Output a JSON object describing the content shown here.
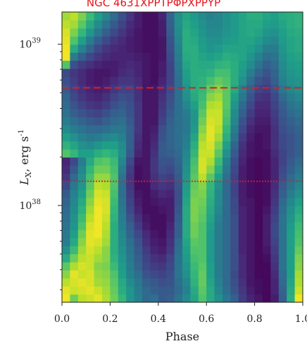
{
  "banner": {
    "text": "NGC 4631ΧΡΡΤΡΦΡΧΡΡΥΡ",
    "color": "#e8141b"
  },
  "chart_data": {
    "type": "heatmap",
    "title": "",
    "xlabel": "Phase",
    "ylabel": "L_X, erg s^-1",
    "xlim": [
      0.0,
      1.0
    ],
    "ylim_log10": [
      37.4,
      39.2
    ],
    "y_scale": "log",
    "colormap": "viridis",
    "x_ticks": [
      0.0,
      0.2,
      0.4,
      0.6,
      0.8,
      1.0
    ],
    "x_tick_labels": [
      "0.0",
      "0.2",
      "0.4",
      "0.6",
      "0.8",
      "1.0"
    ],
    "y_ticks_major": [
      38,
      39
    ],
    "y_tick_labels": [
      "10",
      "10"
    ],
    "y_tick_exponents": [
      "38",
      "39"
    ],
    "rows_log10_start": 37.4,
    "row_step_log10": 0.05,
    "col_step_phase": 0.03333,
    "threshold_lines": [
      {
        "log10_lx": 38.73,
        "style": "dashed",
        "color": "#e21c1c"
      },
      {
        "log10_lx": 38.15,
        "style": "dotted",
        "color": "#e21c1c"
      }
    ],
    "intensity_grid": [
      [
        0.98,
        0.78,
        0.9,
        0.92,
        0.96,
        0.88,
        0.78,
        0.66,
        0.52,
        0.44,
        0.34,
        0.36,
        0.28,
        0.3,
        0.38,
        0.48,
        0.58,
        0.72,
        0.6,
        0.5,
        0.4,
        0.3,
        0.18,
        0.1,
        0.06,
        0.02,
        0.08,
        0.3,
        0.62,
        0.98
      ],
      [
        0.96,
        0.92,
        0.94,
        0.96,
        0.92,
        0.86,
        0.76,
        0.62,
        0.52,
        0.42,
        0.34,
        0.3,
        0.28,
        0.28,
        0.34,
        0.44,
        0.6,
        0.74,
        0.6,
        0.46,
        0.36,
        0.26,
        0.16,
        0.08,
        0.04,
        0.02,
        0.1,
        0.32,
        0.6,
        0.92
      ],
      [
        0.9,
        0.94,
        0.96,
        0.94,
        0.86,
        0.84,
        0.74,
        0.6,
        0.48,
        0.4,
        0.3,
        0.28,
        0.24,
        0.26,
        0.36,
        0.46,
        0.64,
        0.76,
        0.58,
        0.44,
        0.34,
        0.24,
        0.14,
        0.06,
        0.04,
        0.02,
        0.1,
        0.34,
        0.58,
        0.88
      ],
      [
        0.82,
        0.96,
        0.92,
        0.94,
        0.84,
        0.82,
        0.72,
        0.56,
        0.44,
        0.36,
        0.26,
        0.22,
        0.2,
        0.24,
        0.38,
        0.5,
        0.66,
        0.76,
        0.56,
        0.42,
        0.34,
        0.22,
        0.12,
        0.06,
        0.02,
        0.02,
        0.12,
        0.36,
        0.56,
        0.86
      ],
      [
        0.74,
        0.88,
        0.94,
        0.92,
        0.82,
        0.8,
        0.68,
        0.54,
        0.42,
        0.32,
        0.22,
        0.18,
        0.16,
        0.22,
        0.38,
        0.52,
        0.68,
        0.74,
        0.56,
        0.42,
        0.34,
        0.24,
        0.12,
        0.06,
        0.02,
        0.02,
        0.14,
        0.38,
        0.56,
        0.82
      ],
      [
        0.6,
        0.78,
        0.9,
        0.92,
        0.86,
        0.82,
        0.64,
        0.52,
        0.4,
        0.3,
        0.2,
        0.14,
        0.12,
        0.2,
        0.38,
        0.54,
        0.7,
        0.72,
        0.54,
        0.42,
        0.34,
        0.24,
        0.12,
        0.06,
        0.02,
        0.04,
        0.16,
        0.38,
        0.56,
        0.8
      ],
      [
        0.5,
        0.68,
        0.86,
        0.94,
        0.9,
        0.82,
        0.62,
        0.5,
        0.38,
        0.28,
        0.18,
        0.1,
        0.08,
        0.16,
        0.36,
        0.56,
        0.72,
        0.72,
        0.54,
        0.42,
        0.34,
        0.24,
        0.1,
        0.06,
        0.02,
        0.06,
        0.18,
        0.38,
        0.56,
        0.76
      ],
      [
        0.42,
        0.6,
        0.82,
        0.96,
        0.94,
        0.86,
        0.62,
        0.48,
        0.36,
        0.26,
        0.14,
        0.08,
        0.06,
        0.14,
        0.34,
        0.58,
        0.74,
        0.72,
        0.54,
        0.42,
        0.34,
        0.24,
        0.1,
        0.06,
        0.02,
        0.08,
        0.2,
        0.38,
        0.56,
        0.72
      ],
      [
        0.4,
        0.56,
        0.78,
        0.96,
        0.98,
        0.88,
        0.62,
        0.46,
        0.32,
        0.22,
        0.12,
        0.06,
        0.04,
        0.12,
        0.3,
        0.6,
        0.78,
        0.72,
        0.54,
        0.42,
        0.34,
        0.24,
        0.1,
        0.06,
        0.02,
        0.08,
        0.22,
        0.38,
        0.56,
        0.7
      ],
      [
        0.38,
        0.52,
        0.72,
        0.94,
        0.98,
        0.9,
        0.62,
        0.44,
        0.3,
        0.18,
        0.08,
        0.04,
        0.04,
        0.1,
        0.3,
        0.6,
        0.78,
        0.72,
        0.56,
        0.42,
        0.34,
        0.24,
        0.1,
        0.06,
        0.02,
        0.08,
        0.22,
        0.38,
        0.54,
        0.68
      ],
      [
        0.36,
        0.5,
        0.68,
        0.9,
        0.98,
        0.92,
        0.64,
        0.42,
        0.26,
        0.14,
        0.06,
        0.04,
        0.04,
        0.08,
        0.28,
        0.6,
        0.8,
        0.74,
        0.58,
        0.44,
        0.34,
        0.24,
        0.1,
        0.06,
        0.02,
        0.08,
        0.2,
        0.38,
        0.52,
        0.64
      ],
      [
        0.34,
        0.48,
        0.64,
        0.86,
        0.98,
        0.94,
        0.66,
        0.4,
        0.22,
        0.1,
        0.04,
        0.04,
        0.06,
        0.08,
        0.26,
        0.6,
        0.8,
        0.76,
        0.6,
        0.46,
        0.34,
        0.22,
        0.1,
        0.06,
        0.02,
        0.06,
        0.18,
        0.36,
        0.5,
        0.6
      ],
      [
        0.32,
        0.46,
        0.6,
        0.82,
        0.96,
        0.94,
        0.68,
        0.38,
        0.2,
        0.08,
        0.04,
        0.06,
        0.08,
        0.08,
        0.24,
        0.58,
        0.8,
        0.78,
        0.62,
        0.48,
        0.34,
        0.22,
        0.08,
        0.06,
        0.02,
        0.04,
        0.16,
        0.34,
        0.46,
        0.56
      ],
      [
        0.28,
        0.44,
        0.56,
        0.78,
        0.94,
        0.92,
        0.7,
        0.36,
        0.18,
        0.06,
        0.04,
        0.08,
        0.12,
        0.1,
        0.24,
        0.56,
        0.78,
        0.8,
        0.64,
        0.48,
        0.34,
        0.2,
        0.08,
        0.04,
        0.02,
        0.04,
        0.14,
        0.3,
        0.42,
        0.5
      ],
      [
        0.22,
        0.4,
        0.52,
        0.74,
        0.9,
        0.88,
        0.72,
        0.36,
        0.16,
        0.04,
        0.04,
        0.12,
        0.16,
        0.14,
        0.26,
        0.54,
        0.76,
        0.82,
        0.66,
        0.5,
        0.34,
        0.2,
        0.08,
        0.04,
        0.02,
        0.04,
        0.12,
        0.28,
        0.38,
        0.46
      ],
      [
        0.16,
        0.34,
        0.5,
        0.7,
        0.84,
        0.84,
        0.72,
        0.38,
        0.16,
        0.04,
        0.06,
        0.14,
        0.2,
        0.18,
        0.28,
        0.52,
        0.74,
        0.9,
        0.74,
        0.56,
        0.36,
        0.2,
        0.08,
        0.04,
        0.02,
        0.04,
        0.1,
        0.24,
        0.34,
        0.42
      ],
      [
        0.12,
        0.28,
        0.46,
        0.66,
        0.78,
        0.78,
        0.7,
        0.42,
        0.18,
        0.04,
        0.06,
        0.16,
        0.24,
        0.22,
        0.3,
        0.5,
        0.72,
        0.94,
        0.82,
        0.62,
        0.4,
        0.22,
        0.08,
        0.04,
        0.02,
        0.04,
        0.1,
        0.22,
        0.3,
        0.38
      ],
      [
        0.1,
        0.22,
        0.42,
        0.6,
        0.72,
        0.74,
        0.68,
        0.46,
        0.22,
        0.06,
        0.06,
        0.16,
        0.26,
        0.26,
        0.32,
        0.48,
        0.7,
        0.94,
        0.88,
        0.68,
        0.44,
        0.24,
        0.1,
        0.04,
        0.02,
        0.04,
        0.1,
        0.2,
        0.28,
        0.34
      ],
      [
        0.72,
        0.66,
        0.56,
        0.56,
        0.62,
        0.66,
        0.62,
        0.5,
        0.28,
        0.1,
        0.06,
        0.14,
        0.28,
        0.3,
        0.34,
        0.46,
        0.66,
        0.92,
        0.92,
        0.74,
        0.5,
        0.28,
        0.12,
        0.06,
        0.04,
        0.04,
        0.12,
        0.2,
        0.26,
        0.3
      ],
      [
        0.64,
        0.58,
        0.5,
        0.48,
        0.52,
        0.56,
        0.56,
        0.48,
        0.3,
        0.12,
        0.06,
        0.12,
        0.28,
        0.32,
        0.36,
        0.44,
        0.62,
        0.9,
        0.94,
        0.8,
        0.56,
        0.32,
        0.14,
        0.06,
        0.04,
        0.06,
        0.14,
        0.22,
        0.26,
        0.3
      ],
      [
        0.56,
        0.5,
        0.44,
        0.4,
        0.42,
        0.46,
        0.48,
        0.44,
        0.3,
        0.14,
        0.06,
        0.1,
        0.26,
        0.32,
        0.36,
        0.42,
        0.58,
        0.86,
        0.96,
        0.86,
        0.62,
        0.38,
        0.18,
        0.08,
        0.04,
        0.06,
        0.14,
        0.22,
        0.26,
        0.3
      ],
      [
        0.48,
        0.42,
        0.38,
        0.34,
        0.34,
        0.36,
        0.4,
        0.4,
        0.3,
        0.16,
        0.06,
        0.08,
        0.24,
        0.32,
        0.36,
        0.4,
        0.54,
        0.82,
        0.96,
        0.9,
        0.66,
        0.42,
        0.22,
        0.1,
        0.06,
        0.06,
        0.14,
        0.24,
        0.28,
        0.32
      ],
      [
        0.42,
        0.36,
        0.32,
        0.28,
        0.26,
        0.3,
        0.34,
        0.36,
        0.28,
        0.16,
        0.06,
        0.06,
        0.2,
        0.3,
        0.36,
        0.4,
        0.52,
        0.78,
        0.94,
        0.92,
        0.7,
        0.46,
        0.26,
        0.14,
        0.08,
        0.08,
        0.16,
        0.26,
        0.3,
        0.34
      ],
      [
        0.38,
        0.3,
        0.26,
        0.22,
        0.2,
        0.24,
        0.3,
        0.32,
        0.26,
        0.16,
        0.06,
        0.06,
        0.18,
        0.28,
        0.36,
        0.42,
        0.52,
        0.74,
        0.92,
        0.92,
        0.72,
        0.48,
        0.3,
        0.18,
        0.1,
        0.1,
        0.18,
        0.28,
        0.34,
        0.38
      ],
      [
        0.34,
        0.26,
        0.2,
        0.16,
        0.14,
        0.18,
        0.24,
        0.28,
        0.24,
        0.16,
        0.06,
        0.06,
        0.16,
        0.26,
        0.36,
        0.46,
        0.56,
        0.7,
        0.88,
        0.9,
        0.74,
        0.52,
        0.34,
        0.22,
        0.12,
        0.12,
        0.2,
        0.3,
        0.38,
        0.42
      ],
      [
        0.32,
        0.22,
        0.16,
        0.12,
        0.1,
        0.14,
        0.2,
        0.24,
        0.22,
        0.14,
        0.06,
        0.06,
        0.14,
        0.24,
        0.36,
        0.5,
        0.6,
        0.68,
        0.82,
        0.86,
        0.74,
        0.56,
        0.4,
        0.26,
        0.16,
        0.14,
        0.22,
        0.34,
        0.42,
        0.46
      ],
      [
        0.28,
        0.2,
        0.14,
        0.1,
        0.08,
        0.1,
        0.16,
        0.2,
        0.2,
        0.14,
        0.06,
        0.06,
        0.12,
        0.22,
        0.36,
        0.52,
        0.62,
        0.66,
        0.76,
        0.82,
        0.74,
        0.6,
        0.44,
        0.3,
        0.2,
        0.18,
        0.26,
        0.4,
        0.46,
        0.5
      ],
      [
        0.24,
        0.18,
        0.12,
        0.08,
        0.06,
        0.08,
        0.12,
        0.16,
        0.16,
        0.12,
        0.06,
        0.04,
        0.1,
        0.2,
        0.36,
        0.54,
        0.62,
        0.64,
        0.7,
        0.76,
        0.72,
        0.62,
        0.5,
        0.36,
        0.26,
        0.22,
        0.3,
        0.44,
        0.5,
        0.52
      ],
      [
        0.22,
        0.16,
        0.12,
        0.08,
        0.06,
        0.06,
        0.08,
        0.12,
        0.14,
        0.1,
        0.06,
        0.04,
        0.08,
        0.2,
        0.38,
        0.56,
        0.62,
        0.62,
        0.64,
        0.7,
        0.7,
        0.62,
        0.54,
        0.42,
        0.32,
        0.26,
        0.32,
        0.46,
        0.52,
        0.54
      ],
      [
        0.72,
        0.24,
        0.18,
        0.14,
        0.1,
        0.08,
        0.08,
        0.1,
        0.12,
        0.1,
        0.06,
        0.04,
        0.08,
        0.2,
        0.4,
        0.58,
        0.62,
        0.6,
        0.6,
        0.64,
        0.66,
        0.62,
        0.56,
        0.48,
        0.38,
        0.3,
        0.34,
        0.48,
        0.54,
        0.56
      ],
      [
        0.98,
        0.42,
        0.3,
        0.22,
        0.16,
        0.12,
        0.1,
        0.1,
        0.1,
        0.08,
        0.06,
        0.04,
        0.06,
        0.22,
        0.42,
        0.6,
        0.62,
        0.58,
        0.56,
        0.58,
        0.62,
        0.6,
        0.58,
        0.52,
        0.44,
        0.36,
        0.38,
        0.5,
        0.56,
        0.58
      ],
      [
        0.98,
        0.6,
        0.44,
        0.32,
        0.22,
        0.16,
        0.12,
        0.1,
        0.08,
        0.06,
        0.04,
        0.04,
        0.06,
        0.24,
        0.44,
        0.62,
        0.62,
        0.56,
        0.52,
        0.54,
        0.58,
        0.58,
        0.58,
        0.56,
        0.5,
        0.42,
        0.42,
        0.52,
        0.58,
        0.6
      ],
      [
        0.96,
        0.72,
        0.56,
        0.42,
        0.3,
        0.22,
        0.16,
        0.12,
        0.08,
        0.06,
        0.04,
        0.04,
        0.06,
        0.26,
        0.46,
        0.62,
        0.6,
        0.54,
        0.5,
        0.5,
        0.54,
        0.56,
        0.58,
        0.58,
        0.54,
        0.48,
        0.46,
        0.54,
        0.58,
        0.6
      ],
      [
        0.94,
        0.8,
        0.66,
        0.52,
        0.4,
        0.3,
        0.22,
        0.16,
        0.1,
        0.06,
        0.04,
        0.04,
        0.08,
        0.28,
        0.48,
        0.62,
        0.58,
        0.52,
        0.48,
        0.48,
        0.52,
        0.54,
        0.58,
        0.6,
        0.58,
        0.52,
        0.5,
        0.56,
        0.6,
        0.62
      ],
      [
        0.9,
        0.86,
        0.74,
        0.6,
        0.48,
        0.38,
        0.28,
        0.2,
        0.12,
        0.08,
        0.04,
        0.04,
        0.08,
        0.3,
        0.5,
        0.6,
        0.56,
        0.5,
        0.46,
        0.46,
        0.5,
        0.54,
        0.58,
        0.6,
        0.6,
        0.56,
        0.54,
        0.58,
        0.62,
        0.64
      ],
      [
        0.86,
        0.9,
        0.8,
        0.68,
        0.56,
        0.46,
        0.34,
        0.24,
        0.16,
        0.08,
        0.04,
        0.04,
        0.1,
        0.32,
        0.5,
        0.58,
        0.54,
        0.48,
        0.44,
        0.46,
        0.5,
        0.54,
        0.58,
        0.62,
        0.62,
        0.58,
        0.56,
        0.6,
        0.62,
        0.64
      ]
    ]
  }
}
